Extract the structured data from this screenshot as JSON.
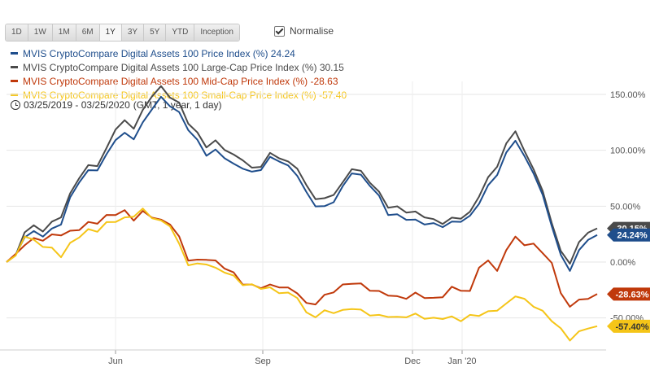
{
  "toolbar": {
    "ranges": [
      "1D",
      "1W",
      "1M",
      "6M",
      "1Y",
      "3Y",
      "5Y",
      "YTD",
      "Inception"
    ],
    "active_range": "1Y",
    "normalise_label": "Normalise",
    "normalise_checked": true
  },
  "date_range": {
    "text": "03/25/2019 - 03/25/2020",
    "detail": "(GMT, 1 year, 1 day)"
  },
  "chart_data": {
    "type": "line",
    "title": "",
    "xlabel": "",
    "ylabel": "",
    "x_ticks": [
      "Jun",
      "Sep",
      "Dec",
      "Jan '20"
    ],
    "y_ticks": [
      "150.00%",
      "100.00%",
      "50.00%",
      "0.00%",
      "-50.00%"
    ],
    "y_tick_values": [
      150,
      100,
      50,
      0,
      -50
    ],
    "ylim": [
      -70,
      170
    ],
    "grid": true,
    "series": [
      {
        "name": "MVIS CryptoCompare Digital Assets 100 Price Index (%)",
        "last_value": "24.24",
        "end_label": "24.24%",
        "color": "#1f4e8c",
        "values": [
          0,
          5,
          25,
          27,
          25,
          30,
          35,
          55,
          72,
          80,
          82,
          95,
          112,
          115,
          112,
          125,
          138,
          145,
          140,
          132,
          118,
          108,
          98,
          100,
          95,
          88,
          85,
          78,
          83,
          92,
          90,
          85,
          80,
          62,
          52,
          50,
          55,
          65,
          80,
          76,
          68,
          58,
          45,
          42,
          40,
          38,
          35,
          32,
          32,
          34,
          36,
          40,
          55,
          68,
          80,
          98,
          110,
          92,
          80,
          58,
          32,
          5,
          -5,
          10,
          22,
          24.24
        ]
      },
      {
        "name": "MVIS CryptoCompare Digital Assets 100 Large-Cap Price Index (%)",
        "last_value": "30.15",
        "end_label": "30.15%",
        "color": "#4a4a4a",
        "values": [
          0,
          6,
          28,
          30,
          28,
          34,
          40,
          60,
          78,
          86,
          88,
          102,
          120,
          124,
          120,
          134,
          148,
          156,
          150,
          142,
          126,
          116,
          104,
          106,
          101,
          94,
          91,
          83,
          88,
          97,
          95,
          90,
          85,
          66,
          57,
          55,
          60,
          70,
          86,
          81,
          73,
          63,
          50,
          47,
          45,
          43,
          40,
          37,
          37,
          39,
          41,
          45,
          60,
          73,
          86,
          104,
          117,
          98,
          86,
          63,
          37,
          10,
          0,
          15,
          27,
          30.15
        ]
      },
      {
        "name": "MVIS CryptoCompare Digital Assets 100 Mid-Cap Price Index (%)",
        "last_value": "-28.63",
        "end_label": "-28.63%",
        "color": "#c0390b",
        "values": [
          0,
          5,
          15,
          20,
          22,
          24,
          26,
          28,
          30,
          33,
          35,
          40,
          42,
          45,
          40,
          45,
          42,
          38,
          35,
          20,
          2,
          0,
          2,
          0,
          -3,
          -10,
          -18,
          -20,
          -22,
          -23,
          -22,
          -25,
          -28,
          -38,
          -35,
          -30,
          -25,
          -20,
          -18,
          -22,
          -25,
          -28,
          -30,
          -32,
          -30,
          -28,
          -30,
          -32,
          -30,
          -25,
          -25,
          -28,
          -5,
          0,
          -5,
          10,
          25,
          15,
          18,
          5,
          0,
          -30,
          -40,
          -35,
          -30,
          -28.63
        ]
      },
      {
        "name": "MVIS CryptoCompare Digital Assets 100 Small-Cap Price Index (%)",
        "last_value": "-57.40",
        "end_label": "-57.40%",
        "color": "#f5c518",
        "values": [
          0,
          5,
          25,
          20,
          15,
          10,
          5,
          15,
          22,
          28,
          30,
          35,
          38,
          40,
          42,
          45,
          40,
          35,
          32,
          15,
          0,
          -2,
          0,
          -5,
          -8,
          -15,
          -20,
          -22,
          -24,
          -24,
          -25,
          -28,
          -30,
          -45,
          -48,
          -46,
          -45,
          -45,
          -42,
          -44,
          -45,
          -48,
          -47,
          -49,
          -48,
          -49,
          -50,
          -52,
          -51,
          -50,
          -50,
          -48,
          -46,
          -44,
          -42,
          -40,
          -30,
          -35,
          -40,
          -45,
          -50,
          -60,
          -68,
          -62,
          -58,
          -57.4
        ]
      }
    ]
  }
}
